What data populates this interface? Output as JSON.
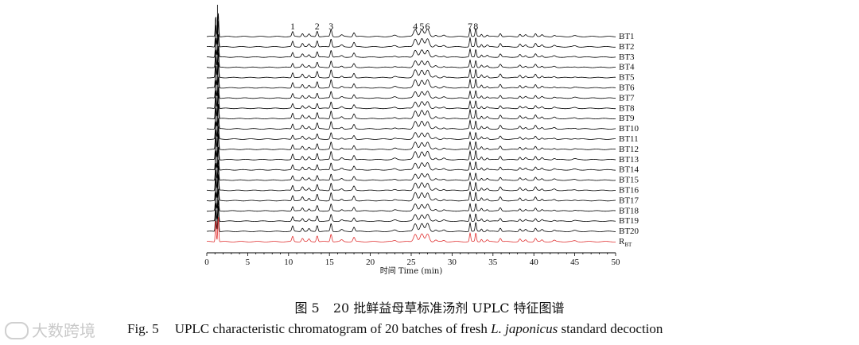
{
  "chart_data": {
    "type": "line",
    "xlabel": "时间 Time (min)",
    "ylabel": "",
    "xlim": [
      0,
      50
    ],
    "x_ticks": [
      0,
      5,
      10,
      15,
      20,
      25,
      30,
      35,
      40,
      45,
      50
    ],
    "grid": false,
    "legend": "right-side labels per trace",
    "series": [
      {
        "name": "BT1",
        "color": "#000000"
      },
      {
        "name": "BT2",
        "color": "#000000"
      },
      {
        "name": "BT3",
        "color": "#000000"
      },
      {
        "name": "BT4",
        "color": "#000000"
      },
      {
        "name": "BT5",
        "color": "#000000"
      },
      {
        "name": "BT6",
        "color": "#000000"
      },
      {
        "name": "BT7",
        "color": "#000000"
      },
      {
        "name": "BT8",
        "color": "#000000"
      },
      {
        "name": "BT9",
        "color": "#000000"
      },
      {
        "name": "BT10",
        "color": "#000000"
      },
      {
        "name": "BT11",
        "color": "#000000"
      },
      {
        "name": "BT12",
        "color": "#000000"
      },
      {
        "name": "BT13",
        "color": "#000000"
      },
      {
        "name": "BT14",
        "color": "#000000"
      },
      {
        "name": "BT15",
        "color": "#000000"
      },
      {
        "name": "BT16",
        "color": "#000000"
      },
      {
        "name": "BT17",
        "color": "#000000"
      },
      {
        "name": "BT18",
        "color": "#000000"
      },
      {
        "name": "BT19",
        "color": "#000000"
      },
      {
        "name": "BT20",
        "color": "#000000"
      },
      {
        "name": "RBT",
        "label_main": "R",
        "label_sub": "BT",
        "color": "#e03030"
      }
    ],
    "peaks": [
      {
        "label": "1",
        "x": 10.5
      },
      {
        "label": "2",
        "x": 13.5
      },
      {
        "label": "3",
        "x": 15.2
      },
      {
        "label": "4",
        "x": 25.5
      },
      {
        "label": "5",
        "x": 26.3
      },
      {
        "label": "6",
        "x": 27.0
      },
      {
        "label": "7",
        "x": 32.2
      },
      {
        "label": "8",
        "x": 32.9
      }
    ],
    "minor_peaks": [
      1.1,
      1.4,
      11.7,
      12.5,
      16.5,
      18.0,
      23.0,
      28.0,
      29.0,
      33.6,
      34.3,
      35.9,
      38.3,
      39.0,
      40.2,
      41.0,
      42.5,
      45.0
    ]
  },
  "caption": {
    "cn_label": "图 5",
    "cn_text": "20 批鲜益母草标准汤剂 UPLC 特征图谱",
    "en_label": "Fig. 5",
    "en_text_before": "UPLC characteristic chromatogram of 20 batches of fresh ",
    "en_italic": "L. japonicus",
    "en_text_after": " standard decoction"
  },
  "watermark": {
    "text": "大数跨境"
  }
}
